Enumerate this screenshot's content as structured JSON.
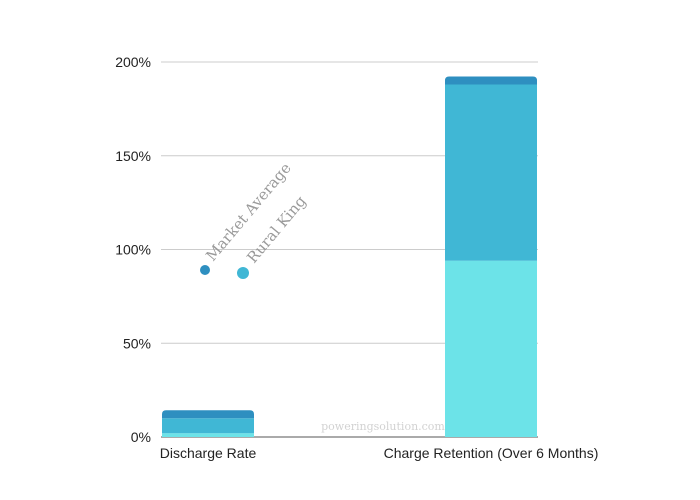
{
  "chart_data": {
    "type": "bar",
    "stacked": true,
    "categories": [
      "Discharge Rate",
      "Charge Retention (Over 6 Months)"
    ],
    "series": [
      {
        "name": "Rural King",
        "values": [
          2,
          94
        ]
      },
      {
        "name": "Market Average",
        "values": [
          8,
          94
        ]
      }
    ],
    "y_ticks": [
      "0%",
      "50%",
      "100%",
      "150%",
      "200%"
    ],
    "ylim": [
      0,
      200
    ],
    "y_unit": "%",
    "grid": true,
    "legend_position": "center-left, rotated labels",
    "colors": {
      "rural_king_fill": "#6ce3e8",
      "market_average_fill": "#40b7d5",
      "bar_cap": "#2e8fc0",
      "rural_king_marker": "#40b7d5",
      "market_average_marker": "#2e8fc0",
      "grid": "#cccccc",
      "axis": "#555555"
    }
  },
  "watermark": "poweringsolution.com"
}
